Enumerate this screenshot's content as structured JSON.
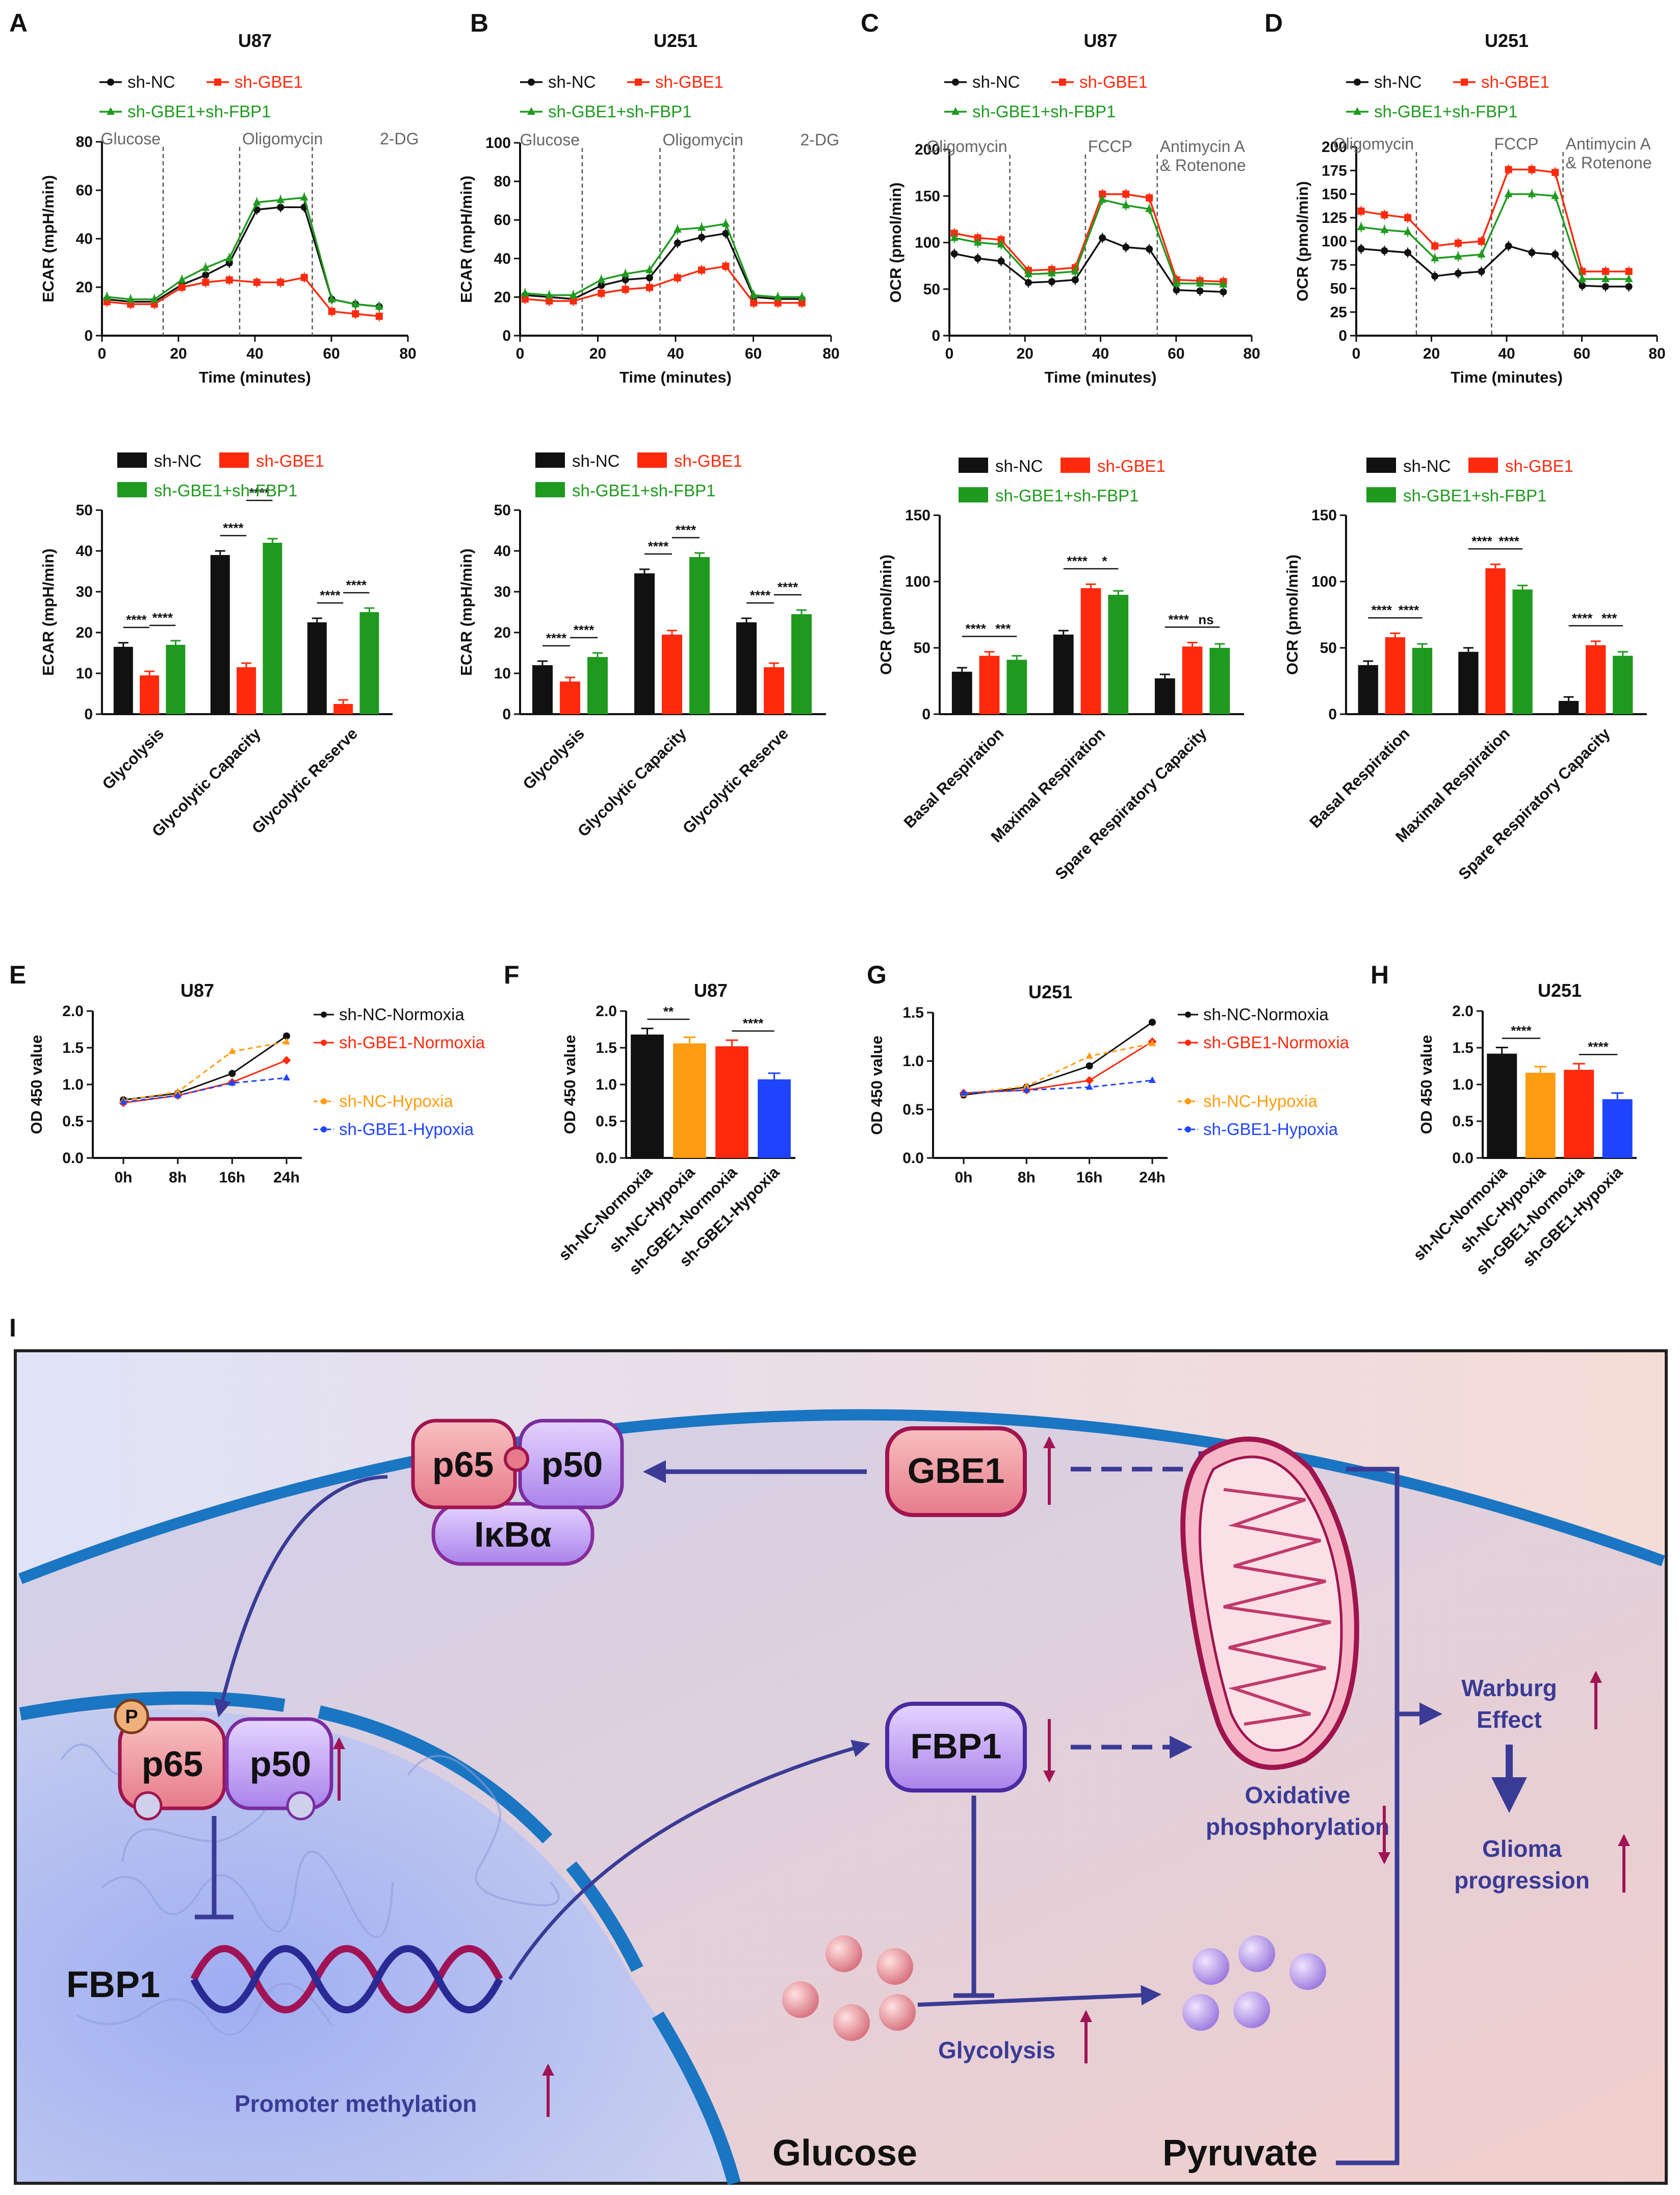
{
  "panel_letters": [
    "A",
    "B",
    "C",
    "D",
    "E",
    "F",
    "G",
    "H",
    "I"
  ],
  "colors": {
    "black": "#111111",
    "red": "#ff2a0e",
    "green": "#1f9a1f",
    "orange": "#ff9c12",
    "blue": "#1f44ff",
    "dark_blue": "#343695",
    "arrow_purple": "#3a3b96",
    "up_arrow": "#a01456"
  },
  "legends": {
    "seahorse": [
      "sh-NC",
      "sh-GBE1",
      "sh-GBE1+sh-FBP1"
    ],
    "growth": [
      "sh-NC-Normoxia",
      "sh-GBE1-Normoxia",
      "sh-NC-Hypoxia",
      "sh-GBE1-Hypoxia"
    ]
  },
  "chart_data": [
    {
      "id": "A",
      "type": "line",
      "title": "U87",
      "xlabel": "Time (minutes)",
      "ylabel": "ECAR (mpH/min)",
      "xlim": [
        0,
        80
      ],
      "ylim": [
        0,
        80
      ],
      "xticks": [
        0,
        20,
        40,
        60,
        80
      ],
      "yticks": [
        0,
        20,
        40,
        60,
        80
      ],
      "annotations": [
        {
          "label": "Glucose",
          "at": 16
        },
        {
          "label": "Oligomycin",
          "at": 36
        },
        {
          "label": "2-DG",
          "at": 55
        }
      ],
      "x": [
        1.3,
        7.5,
        13.7,
        20.9,
        27.1,
        33.3,
        40.5,
        46.7,
        52.9,
        60.1,
        66.3,
        72.5
      ],
      "series": [
        {
          "name": "sh-NC",
          "values": [
            15,
            14,
            14,
            21,
            25,
            30,
            52,
            53,
            53,
            15,
            13,
            12
          ]
        },
        {
          "name": "sh-GBE1",
          "values": [
            14,
            13,
            13,
            20,
            22,
            23,
            22,
            22,
            24,
            10,
            9,
            8
          ]
        },
        {
          "name": "sh-GBE1+sh-FBP1",
          "values": [
            16,
            15,
            15,
            23,
            28,
            32,
            55,
            56,
            57,
            15,
            13,
            12
          ]
        }
      ]
    },
    {
      "id": "B",
      "type": "line",
      "title": "U251",
      "xlabel": "Time (minutes)",
      "ylabel": "ECAR (mpH/min)",
      "xlim": [
        0,
        80
      ],
      "ylim": [
        0,
        100
      ],
      "xticks": [
        0,
        20,
        40,
        60,
        80
      ],
      "yticks": [
        0,
        20,
        40,
        60,
        80,
        100
      ],
      "annotations": [
        {
          "label": "Glucose",
          "at": 16
        },
        {
          "label": "Oligomycin",
          "at": 36
        },
        {
          "label": "2-DG",
          "at": 55
        }
      ],
      "x": [
        1.3,
        7.5,
        13.7,
        20.9,
        27.1,
        33.3,
        40.5,
        46.7,
        52.9,
        60.1,
        66.3,
        72.5
      ],
      "series": [
        {
          "name": "sh-NC",
          "values": [
            21,
            20,
            19,
            26,
            29,
            30,
            48,
            51,
            53,
            20,
            19,
            19
          ]
        },
        {
          "name": "sh-GBE1",
          "values": [
            19,
            18,
            18,
            22,
            24,
            25,
            30,
            34,
            36,
            17,
            17,
            17
          ]
        },
        {
          "name": "sh-GBE1+sh-FBP1",
          "values": [
            22,
            21,
            21,
            29,
            32,
            34,
            55,
            56,
            58,
            21,
            20,
            20
          ]
        }
      ]
    },
    {
      "id": "C",
      "type": "line",
      "title": "U87",
      "xlabel": "Time (minutes)",
      "ylabel": "OCR (pmol/min)",
      "xlim": [
        0,
        80
      ],
      "ylim": [
        0,
        200
      ],
      "xticks": [
        0,
        20,
        40,
        60,
        80
      ],
      "yticks": [
        0,
        50,
        100,
        150,
        200
      ],
      "annotations": [
        {
          "label": "Oligomycin",
          "at": 16
        },
        {
          "label": "FCCP",
          "at": 36
        },
        {
          "label": "Antimycin A",
          "label2": "& Rotenone",
          "at": 55
        }
      ],
      "x": [
        1.3,
        7.5,
        13.7,
        20.9,
        27.1,
        33.3,
        40.5,
        46.7,
        52.9,
        60.1,
        66.3,
        72.5
      ],
      "series": [
        {
          "name": "sh-NC",
          "values": [
            88,
            83,
            80,
            57,
            58,
            60,
            105,
            95,
            93,
            49,
            48,
            47
          ]
        },
        {
          "name": "sh-GBE1",
          "values": [
            110,
            105,
            103,
            70,
            71,
            73,
            152,
            152,
            148,
            60,
            59,
            58
          ]
        },
        {
          "name": "sh-GBE1+sh-FBP1",
          "values": [
            105,
            100,
            98,
            66,
            67,
            69,
            146,
            140,
            136,
            56,
            56,
            55
          ]
        }
      ]
    },
    {
      "id": "D",
      "type": "line",
      "title": "U251",
      "xlabel": "Time (minutes)",
      "ylabel": "OCR (pmol/min)",
      "xlim": [
        0,
        80
      ],
      "ylim": [
        0,
        200
      ],
      "xticks": [
        0,
        20,
        40,
        60,
        80
      ],
      "yticks": [
        0,
        25,
        50,
        75,
        100,
        125,
        150,
        175,
        200
      ],
      "annotations": [
        {
          "label": "Oligomycin",
          "at": 16
        },
        {
          "label": "FCCP",
          "at": 36
        },
        {
          "label": "Antimycin A",
          "label2": "& Rotenone",
          "at": 55
        }
      ],
      "x": [
        1.3,
        7.5,
        13.7,
        20.9,
        27.1,
        33.3,
        40.5,
        46.7,
        52.9,
        60.1,
        66.3,
        72.5
      ],
      "series": [
        {
          "name": "sh-NC",
          "values": [
            92,
            90,
            88,
            63,
            66,
            68,
            95,
            88,
            86,
            53,
            52,
            52
          ]
        },
        {
          "name": "sh-GBE1",
          "values": [
            132,
            128,
            125,
            95,
            98,
            100,
            176,
            176,
            173,
            68,
            68,
            68
          ]
        },
        {
          "name": "sh-GBE1+sh-FBP1",
          "values": [
            115,
            112,
            110,
            82,
            84,
            86,
            150,
            150,
            148,
            60,
            60,
            60
          ]
        }
      ]
    },
    {
      "id": "A2",
      "type": "bar",
      "ylabel": "ECAR (mpH/min)",
      "ylim": [
        0,
        50
      ],
      "yticks": [
        0,
        10,
        20,
        30,
        40,
        50
      ],
      "categories": [
        "Glycolysis",
        "Glycolytic Capacity",
        "Glycolytic Reserve"
      ],
      "series": [
        {
          "name": "sh-NC",
          "values": [
            16.5,
            39,
            22.5
          ]
        },
        {
          "name": "sh-GBE1",
          "values": [
            9.5,
            11.5,
            2.5
          ]
        },
        {
          "name": "sh-GBE1+sh-FBP1",
          "values": [
            17,
            42,
            25
          ]
        }
      ],
      "significance": [
        [
          "****",
          "****"
        ],
        [
          "****",
          "****"
        ],
        [
          "****",
          "****"
        ]
      ]
    },
    {
      "id": "B2",
      "type": "bar",
      "ylabel": "ECAR (mpH/min)",
      "ylim": [
        0,
        50
      ],
      "yticks": [
        0,
        10,
        20,
        30,
        40,
        50
      ],
      "categories": [
        "Glycolysis",
        "Glycolytic Capacity",
        "Glycolytic Reserve"
      ],
      "series": [
        {
          "name": "sh-NC",
          "values": [
            12,
            34.5,
            22.5
          ]
        },
        {
          "name": "sh-GBE1",
          "values": [
            8,
            19.5,
            11.5
          ]
        },
        {
          "name": "sh-GBE1+sh-FBP1",
          "values": [
            14,
            38.5,
            24.5
          ]
        }
      ],
      "significance": [
        [
          "****",
          "****"
        ],
        [
          "****",
          "****"
        ],
        [
          "****",
          "****"
        ]
      ]
    },
    {
      "id": "C2",
      "type": "bar",
      "ylabel": "OCR (pmol/min)",
      "ylim": [
        0,
        150
      ],
      "yticks": [
        0,
        50,
        100,
        150
      ],
      "categories": [
        "Basal Respiration",
        "Maximal Respiration",
        "Spare Respiratory Capacity"
      ],
      "series": [
        {
          "name": "sh-NC",
          "values": [
            32,
            60,
            27
          ]
        },
        {
          "name": "sh-GBE1",
          "values": [
            44,
            95,
            51
          ]
        },
        {
          "name": "sh-GBE1+sh-FBP1",
          "values": [
            41,
            90,
            50
          ]
        }
      ],
      "significance": [
        [
          "****",
          "***"
        ],
        [
          "****",
          "*"
        ],
        [
          "****",
          "ns"
        ]
      ]
    },
    {
      "id": "D2",
      "type": "bar",
      "ylabel": "OCR (pmol/min)",
      "ylim": [
        0,
        150
      ],
      "yticks": [
        0,
        50,
        100,
        150
      ],
      "categories": [
        "Basal Respiration",
        "Maximal Respiration",
        "Spare Respiratory Capacity"
      ],
      "series": [
        {
          "name": "sh-NC",
          "values": [
            37,
            47,
            10
          ]
        },
        {
          "name": "sh-GBE1",
          "values": [
            58,
            110,
            52
          ]
        },
        {
          "name": "sh-GBE1+sh-FBP1",
          "values": [
            50,
            94,
            44
          ]
        }
      ],
      "significance": [
        [
          "****",
          "****"
        ],
        [
          "****",
          "****"
        ],
        [
          "****",
          "***"
        ]
      ]
    },
    {
      "id": "E",
      "type": "line",
      "title": "U87",
      "ylabel": "OD 450 value",
      "ylim": [
        0,
        2.0
      ],
      "yticks": [
        0.0,
        0.5,
        1.0,
        1.5,
        2.0
      ],
      "categories": [
        "0h",
        "8h",
        "16h",
        "24h"
      ],
      "series": [
        {
          "name": "sh-NC-Normoxia",
          "values": [
            0.79,
            0.88,
            1.15,
            1.66
          ]
        },
        {
          "name": "sh-GBE1-Normoxia",
          "values": [
            0.75,
            0.85,
            1.03,
            1.33
          ]
        },
        {
          "name": "sh-NC-Hypoxia",
          "values": [
            0.78,
            0.9,
            1.45,
            1.58
          ]
        },
        {
          "name": "sh-GBE1-Hypoxia",
          "values": [
            0.76,
            0.85,
            1.02,
            1.09
          ]
        }
      ]
    },
    {
      "id": "F",
      "type": "bar",
      "title": "U87",
      "ylabel": "OD 450 value",
      "ylim": [
        0,
        2.0
      ],
      "yticks": [
        0.0,
        0.5,
        1.0,
        1.5,
        2.0
      ],
      "categories": [
        "sh-NC-Normoxia",
        "sh-NC-Hypoxia",
        "sh-GBE1-Normoxia",
        "sh-GBE1-Hypoxia"
      ],
      "values": [
        1.68,
        1.56,
        1.52,
        1.07
      ],
      "significance": [
        "**",
        "****"
      ]
    },
    {
      "id": "G",
      "type": "line",
      "title": "U251",
      "ylabel": "OD 450 value",
      "ylim": [
        0,
        1.5
      ],
      "yticks": [
        0.0,
        0.5,
        1.0,
        1.5
      ],
      "categories": [
        "0h",
        "8h",
        "16h",
        "24h"
      ],
      "series": [
        {
          "name": "sh-NC-Normoxia",
          "values": [
            0.65,
            0.73,
            0.95,
            1.4
          ]
        },
        {
          "name": "sh-GBE1-Normoxia",
          "values": [
            0.67,
            0.7,
            0.8,
            1.2
          ]
        },
        {
          "name": "sh-NC-Hypoxia",
          "values": [
            0.66,
            0.74,
            1.05,
            1.18
          ]
        },
        {
          "name": "sh-GBE1-Hypoxia",
          "values": [
            0.67,
            0.7,
            0.73,
            0.8
          ]
        }
      ]
    },
    {
      "id": "H",
      "type": "bar",
      "title": "U251",
      "ylabel": "OD 450 value",
      "ylim": [
        0,
        2.0
      ],
      "yticks": [
        0.0,
        0.5,
        1.0,
        1.5,
        2.0
      ],
      "categories": [
        "sh-NC-Normoxia",
        "sh-NC-Hypoxia",
        "sh-GBE1-Normoxia",
        "sh-GBE1-Hypoxia"
      ],
      "values": [
        1.42,
        1.16,
        1.2,
        0.8
      ],
      "significance": [
        "****",
        "****"
      ]
    }
  ],
  "diagram": {
    "proteins": {
      "p65": "p65",
      "p50": "p50",
      "ikba": "IκBα",
      "p": "P",
      "gbe1": "GBE1",
      "fbp1": "FBP1"
    },
    "labels": {
      "fbp1_gene": "FBP1",
      "promoter": "Promoter methylation",
      "oxphos1": "Oxidative",
      "oxphos2": "phosphorylation",
      "glycolysis": "Glycolysis",
      "glucose": "Glucose",
      "pyruvate": "Pyruvate",
      "warburg1": "Warburg",
      "warburg2": "Effect",
      "glioma1": "Glioma",
      "glioma2": "progression"
    }
  }
}
